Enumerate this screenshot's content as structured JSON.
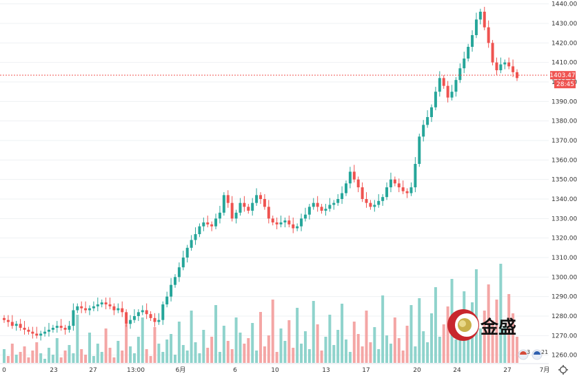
{
  "chart_data": {
    "type": "candlestick",
    "title": "",
    "xlabel": "",
    "ylabel": "",
    "ylim": [
      1256,
      1442
    ],
    "y_ticks": [
      1260,
      1270,
      1280,
      1290,
      1300,
      1310,
      1320,
      1330,
      1340,
      1350,
      1360,
      1370,
      1380,
      1390,
      1400,
      1410,
      1420,
      1430,
      1440
    ],
    "x_tick_labels": [
      "0",
      "23",
      "27",
      "13:00",
      "6月",
      "6",
      "10",
      "13",
      "17",
      "20",
      "24",
      "27",
      "7月"
    ],
    "last_price": "1403.47",
    "countdown": "28:45",
    "grid": true,
    "colors": {
      "up": "#26a69a",
      "down": "#ef5350",
      "up_volume": "#8fd3cc",
      "down_volume": "#f4a6a5",
      "price_line": "#ef5350"
    },
    "candles": [
      1278,
      1277,
      1275,
      1276,
      1274,
      1273,
      1272,
      1271,
      1270,
      1271,
      1272,
      1273,
      1274,
      1275,
      1274,
      1273,
      1275,
      1283,
      1285,
      1284,
      1283,
      1284,
      1285,
      1286,
      1287,
      1286,
      1285,
      1283,
      1284,
      1282,
      1276,
      1278,
      1280,
      1282,
      1283,
      1281,
      1279,
      1277,
      1278,
      1286,
      1290,
      1296,
      1300,
      1305,
      1310,
      1315,
      1319,
      1322,
      1326,
      1328,
      1327,
      1326,
      1330,
      1333,
      1342,
      1338,
      1330,
      1333,
      1338,
      1336,
      1334,
      1338,
      1342,
      1340,
      1336,
      1330,
      1328,
      1327,
      1328,
      1329,
      1327,
      1325,
      1326,
      1330,
      1332,
      1336,
      1338,
      1336,
      1334,
      1335,
      1337,
      1338,
      1340,
      1343,
      1348,
      1354,
      1350,
      1346,
      1340,
      1338,
      1336,
      1337,
      1339,
      1341,
      1346,
      1350,
      1348,
      1346,
      1344,
      1343,
      1346,
      1358,
      1372,
      1378,
      1382,
      1387,
      1395,
      1402,
      1398,
      1392,
      1395,
      1401,
      1407,
      1412,
      1418,
      1424,
      1432,
      1436,
      1428,
      1420,
      1410,
      1406,
      1409,
      1410,
      1408,
      1405,
      1402
    ],
    "volumes": [
      10,
      5,
      14,
      6,
      8,
      12,
      4,
      9,
      15,
      7,
      3,
      11,
      6,
      18,
      4,
      9,
      13,
      7,
      35,
      10,
      6,
      22,
      5,
      14,
      8,
      25,
      11,
      4,
      16,
      9,
      28,
      12,
      7,
      19,
      33,
      10,
      5,
      26,
      14,
      8,
      17,
      21,
      6,
      30,
      13,
      9,
      38,
      15,
      7,
      24,
      11,
      19,
      42,
      8,
      27,
      16,
      10,
      33,
      22,
      14,
      18,
      29,
      9,
      37,
      12,
      20,
      46,
      8,
      25,
      16,
      31,
      11,
      40,
      14,
      23,
      10,
      45,
      28,
      9,
      19,
      35,
      13,
      24,
      43,
      17,
      8,
      30,
      21,
      12,
      38,
      15,
      26,
      10,
      49,
      20,
      14,
      33,
      18,
      9,
      27,
      42,
      12,
      47,
      23,
      15,
      36,
      55,
      19,
      28,
      41,
      61,
      17,
      33,
      52,
      22,
      44,
      68,
      25,
      38,
      57,
      31,
      46,
      72,
      27,
      50,
      36,
      19
    ]
  },
  "badges": [
    "3",
    "21"
  ],
  "logo": {
    "text": "金盛"
  }
}
